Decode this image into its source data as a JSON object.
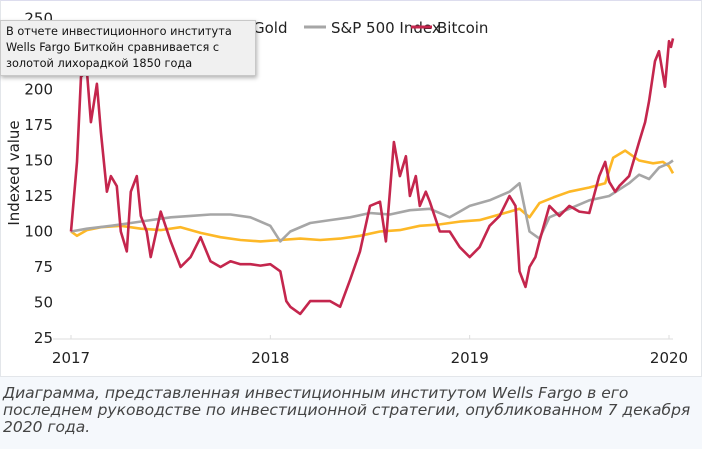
{
  "chart_data": {
    "type": "line",
    "title": "",
    "xlabel": "",
    "ylabel": "Indexed value",
    "xlim": [
      2017,
      2020.02
    ],
    "ylim": [
      25,
      250
    ],
    "yticks": [
      25,
      50,
      75,
      100,
      125,
      150,
      175,
      200,
      250
    ],
    "xticks": [
      "2017",
      "2018",
      "2019",
      "2020"
    ],
    "grid": false,
    "legend": "top",
    "series": [
      {
        "name": "Gold",
        "color": "#FDB827",
        "x": [
          2017,
          2017.03,
          2017.08,
          2017.15,
          2017.25,
          2017.35,
          2017.45,
          2017.55,
          2017.65,
          2017.75,
          2017.85,
          2017.95,
          2018.05,
          2018.15,
          2018.25,
          2018.35,
          2018.45,
          2018.55,
          2018.65,
          2018.75,
          2018.85,
          2018.95,
          2019.05,
          2019.15,
          2019.25,
          2019.3,
          2019.35,
          2019.42,
          2019.5,
          2019.6,
          2019.68,
          2019.72,
          2019.78,
          2019.85,
          2019.92,
          2019.97,
          2020.0,
          2020.02
        ],
        "y": [
          100,
          97,
          101,
          103,
          104,
          102,
          101,
          103,
          99,
          96,
          94,
          93,
          94,
          95,
          94,
          95,
          97,
          100,
          101,
          104,
          105,
          107,
          108,
          112,
          116,
          110,
          120,
          124,
          128,
          131,
          134,
          152,
          157,
          150,
          148,
          149,
          146,
          141
        ]
      },
      {
        "name": "S&P 500 Index",
        "color": "#A6A6A6",
        "x": [
          2017,
          2017.08,
          2017.2,
          2017.3,
          2017.4,
          2017.5,
          2017.6,
          2017.7,
          2017.8,
          2017.9,
          2018.0,
          2018.05,
          2018.1,
          2018.2,
          2018.3,
          2018.4,
          2018.5,
          2018.6,
          2018.7,
          2018.8,
          2018.9,
          2018.95,
          2019.0,
          2019.1,
          2019.2,
          2019.25,
          2019.3,
          2019.35,
          2019.4,
          2019.5,
          2019.6,
          2019.7,
          2019.8,
          2019.85,
          2019.9,
          2019.95,
          2020.0,
          2020.02
        ],
        "y": [
          100,
          102,
          104,
          106,
          108,
          110,
          111,
          112,
          112,
          110,
          104,
          93,
          100,
          106,
          108,
          110,
          113,
          112,
          115,
          116,
          110,
          114,
          118,
          122,
          128,
          134,
          100,
          95,
          110,
          116,
          122,
          125,
          134,
          140,
          137,
          145,
          148,
          150
        ]
      },
      {
        "name": "Bitcoin",
        "color": "#C4264D",
        "x": [
          2017,
          2017.03,
          2017.05,
          2017.08,
          2017.1,
          2017.13,
          2017.15,
          2017.18,
          2017.2,
          2017.23,
          2017.25,
          2017.28,
          2017.3,
          2017.33,
          2017.35,
          2017.38,
          2017.4,
          2017.45,
          2017.5,
          2017.55,
          2017.6,
          2017.65,
          2017.7,
          2017.75,
          2017.8,
          2017.85,
          2017.9,
          2017.95,
          2018.0,
          2018.05,
          2018.08,
          2018.1,
          2018.15,
          2018.2,
          2018.3,
          2018.35,
          2018.4,
          2018.45,
          2018.5,
          2018.55,
          2018.58,
          2018.6,
          2018.62,
          2018.65,
          2018.68,
          2018.7,
          2018.73,
          2018.75,
          2018.78,
          2018.8,
          2018.85,
          2018.9,
          2018.95,
          2019.0,
          2019.05,
          2019.1,
          2019.15,
          2019.2,
          2019.23,
          2019.25,
          2019.28,
          2019.3,
          2019.33,
          2019.35,
          2019.4,
          2019.45,
          2019.5,
          2019.55,
          2019.6,
          2019.65,
          2019.68,
          2019.7,
          2019.73,
          2019.75,
          2019.8,
          2019.85,
          2019.88,
          2019.9,
          2019.93,
          2019.95,
          2019.98,
          2020.0,
          2020.01,
          2020.02
        ],
        "y": [
          100,
          149,
          209,
          213,
          177,
          204,
          170,
          128,
          139,
          132,
          100,
          86,
          128,
          139,
          111,
          100,
          82,
          114,
          93,
          75,
          82,
          96,
          79,
          75,
          79,
          77,
          77,
          76,
          77,
          72,
          51,
          47,
          42,
          51,
          51,
          47,
          66,
          86,
          118,
          121,
          93,
          128,
          163,
          139,
          153,
          125,
          139,
          118,
          128,
          121,
          100,
          100,
          89,
          82,
          89,
          104,
          111,
          125,
          118,
          72,
          61,
          75,
          82,
          93,
          118,
          111,
          118,
          114,
          113,
          139,
          149,
          135,
          128,
          132,
          139,
          163,
          177,
          192,
          220,
          227,
          202,
          234,
          230,
          236
        ]
      }
    ]
  },
  "tooltip": {
    "text": "В отчете инвестиционного института Wells Fargo Биткойн сравнивается с золотой лихорадкой 1850 года"
  },
  "caption": "Диаграмма, представленная инвестиционным институтом Wells Fargo в его последнем руководстве по инвестиционной стратегии, опубликованном 7 декабря 2020 года."
}
